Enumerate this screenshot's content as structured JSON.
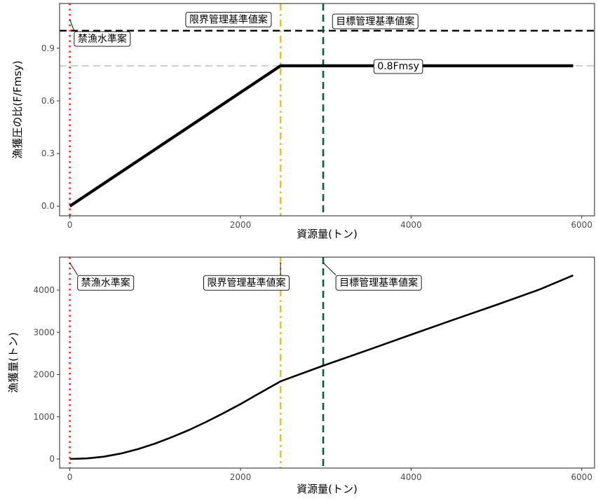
{
  "chart_data": [
    {
      "type": "line",
      "xlabel": "資源量(トン)",
      "ylabel": "漁獲圧の比(F/Fmsy)",
      "xlim": [
        -120,
        6150
      ],
      "ylim": [
        -0.055,
        1.155
      ],
      "xticks": [
        0,
        2000,
        4000,
        6000
      ],
      "xtick_labels": [
        "0",
        "2000",
        "4000",
        "6000"
      ],
      "yticks": [
        0.0,
        0.3,
        0.6,
        0.9
      ],
      "ytick_labels": [
        "0.0",
        "0.3",
        "0.6",
        "0.9"
      ],
      "grid": false,
      "series": [
        {
          "x": [
            0,
            2470,
            5900
          ],
          "y": [
            0,
            0.8,
            0.8
          ],
          "color": "#000000"
        }
      ],
      "hlines": [
        {
          "y": 1.0,
          "color": "#000000",
          "style": "dashed"
        },
        {
          "y": 0.8,
          "color": "#bbbbbb",
          "style": "dashed",
          "label": "0.8Fmsy",
          "label_x": 3850
        }
      ],
      "vlines": [
        {
          "x": 0,
          "color": "#e8372d",
          "style": "dotted",
          "label": "禁漁水準案",
          "label_x": 380,
          "label_y": 0.955
        },
        {
          "x": 2470,
          "color": "#f0c020",
          "style": "dashdot",
          "label": "限界管理基準値案",
          "label_x": 1860,
          "label_y": 1.065
        },
        {
          "x": 2970,
          "color": "#0d5c3a",
          "style": "dashed",
          "label": "目標管理基準値案",
          "label_x": 3580,
          "label_y": 1.055
        }
      ]
    },
    {
      "type": "line",
      "xlabel": "資源量(トン)",
      "ylabel": "漁獲量(トン)",
      "xlim": [
        -120,
        6150
      ],
      "ylim": [
        -215,
        4780
      ],
      "xticks": [
        0,
        2000,
        4000,
        6000
      ],
      "xtick_labels": [
        "0",
        "2000",
        "4000",
        "6000"
      ],
      "yticks": [
        0,
        1000,
        2000,
        3000,
        4000
      ],
      "ytick_labels": [
        "0",
        "1000",
        "2000",
        "3000",
        "4000"
      ],
      "grid": false,
      "series": [
        {
          "x": [
            0,
            200,
            400,
            600,
            800,
            1000,
            1200,
            1400,
            1600,
            1800,
            2000,
            2200,
            2470,
            2970,
            3500,
            4000,
            4500,
            5000,
            5500,
            5900
          ],
          "y": [
            0,
            14,
            55,
            130,
            235,
            365,
            520,
            690,
            880,
            1085,
            1300,
            1530,
            1840,
            2210,
            2585,
            2945,
            3300,
            3650,
            4010,
            4350
          ],
          "color": "#000000"
        }
      ],
      "vlines": [
        {
          "x": 0,
          "color": "#e8372d",
          "style": "dotted",
          "label": "禁漁水準案",
          "label_x": 420,
          "label_y": 4180
        },
        {
          "x": 2470,
          "color": "#f0c020",
          "style": "dashdot",
          "label": "限界管理基準値案",
          "label_x": 2070,
          "label_y": 4180
        },
        {
          "x": 2970,
          "color": "#0d5c3a",
          "style": "dashed",
          "label": "目標管理基準値案",
          "label_x": 3620,
          "label_y": 4180
        }
      ]
    }
  ]
}
